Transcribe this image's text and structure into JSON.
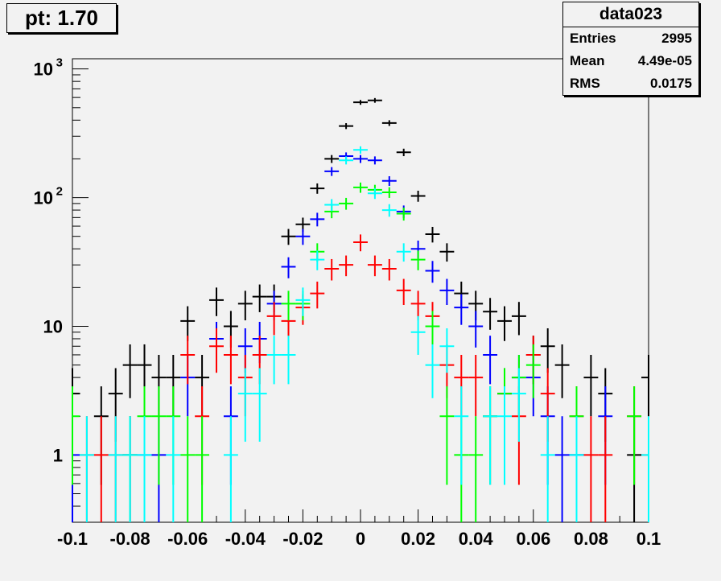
{
  "title_box": {
    "text": "pt: 1.70"
  },
  "stats_box": {
    "name": "data023",
    "rows": [
      {
        "label": "Entries",
        "value": "2995"
      },
      {
        "label": "Mean",
        "value": "4.49e-05"
      },
      {
        "label": "RMS",
        "value": "0.0175"
      }
    ]
  },
  "chart_data": {
    "type": "scatter",
    "title": "",
    "xlabel": "",
    "ylabel": "",
    "xlim": [
      -0.1,
      0.1
    ],
    "ylim": [
      0.3,
      1200
    ],
    "yscale": "log",
    "grid": false,
    "legend": "none",
    "bin_width": 0.005,
    "x_ticks": [
      {
        "value": -0.1,
        "label": "-0.1"
      },
      {
        "value": -0.08,
        "label": "-0.08"
      },
      {
        "value": -0.06,
        "label": "-0.06"
      },
      {
        "value": -0.04,
        "label": "-0.04"
      },
      {
        "value": -0.02,
        "label": "-0.02"
      },
      {
        "value": 0,
        "label": "0"
      },
      {
        "value": 0.02,
        "label": "0.02"
      },
      {
        "value": 0.04,
        "label": "0.04"
      },
      {
        "value": 0.06,
        "label": "0.06"
      },
      {
        "value": 0.08,
        "label": "0.08"
      },
      {
        "value": 0.1,
        "label": "0.1"
      }
    ],
    "y_ticks": [
      {
        "value": 1,
        "label": "1",
        "sup": ""
      },
      {
        "value": 10,
        "label": "10",
        "sup": ""
      },
      {
        "value": 100,
        "label": "10",
        "sup": "2"
      },
      {
        "value": 1000,
        "label": "10",
        "sup": "3"
      }
    ],
    "series": [
      {
        "color": "#000000",
        "points": [
          [
            -0.1,
            3
          ],
          [
            -0.09,
            2
          ],
          [
            -0.085,
            3
          ],
          [
            -0.08,
            5
          ],
          [
            -0.075,
            5
          ],
          [
            -0.07,
            4
          ],
          [
            -0.065,
            4
          ],
          [
            -0.06,
            11
          ],
          [
            -0.055,
            4
          ],
          [
            -0.05,
            16
          ],
          [
            -0.045,
            10
          ],
          [
            -0.04,
            15
          ],
          [
            -0.035,
            17
          ],
          [
            -0.03,
            17
          ],
          [
            -0.025,
            50
          ],
          [
            -0.02,
            62
          ],
          [
            -0.015,
            118
          ],
          [
            -0.01,
            200
          ],
          [
            -0.005,
            360
          ],
          [
            0,
            550
          ],
          [
            0.005,
            570
          ],
          [
            0.01,
            380
          ],
          [
            0.015,
            225
          ],
          [
            0.02,
            103
          ],
          [
            0.025,
            52
          ],
          [
            0.03,
            38
          ],
          [
            0.035,
            18
          ],
          [
            0.04,
            15
          ],
          [
            0.045,
            13
          ],
          [
            0.05,
            11
          ],
          [
            0.055,
            12
          ],
          [
            0.06,
            6
          ],
          [
            0.065,
            7
          ],
          [
            0.07,
            5
          ],
          [
            0.075,
            1
          ],
          [
            0.08,
            4
          ],
          [
            0.085,
            3
          ],
          [
            0.095,
            1
          ],
          [
            0.1,
            4
          ]
        ]
      },
      {
        "color": "#0000ff",
        "points": [
          [
            -0.1,
            1
          ],
          [
            -0.08,
            1
          ],
          [
            -0.075,
            1
          ],
          [
            -0.07,
            1
          ],
          [
            -0.06,
            4
          ],
          [
            -0.05,
            8
          ],
          [
            -0.045,
            2
          ],
          [
            -0.04,
            7
          ],
          [
            -0.035,
            8
          ],
          [
            -0.03,
            15
          ],
          [
            -0.025,
            29
          ],
          [
            -0.02,
            50
          ],
          [
            -0.015,
            68
          ],
          [
            -0.01,
            160
          ],
          [
            -0.005,
            210
          ],
          [
            0,
            200
          ],
          [
            0.005,
            195
          ],
          [
            0.01,
            135
          ],
          [
            0.015,
            78
          ],
          [
            0.02,
            40
          ],
          [
            0.025,
            27
          ],
          [
            0.03,
            19
          ],
          [
            0.035,
            14
          ],
          [
            0.04,
            10
          ],
          [
            0.045,
            6
          ],
          [
            0.05,
            3
          ],
          [
            0.055,
            4
          ],
          [
            0.06,
            4
          ],
          [
            0.065,
            2
          ],
          [
            0.07,
            1
          ],
          [
            0.075,
            1
          ],
          [
            0.085,
            2
          ]
        ]
      },
      {
        "color": "#ff0000",
        "points": [
          [
            -0.095,
            1
          ],
          [
            -0.09,
            1
          ],
          [
            -0.085,
            1
          ],
          [
            -0.08,
            1
          ],
          [
            -0.06,
            6
          ],
          [
            -0.055,
            2
          ],
          [
            -0.05,
            7
          ],
          [
            -0.045,
            6
          ],
          [
            -0.04,
            4
          ],
          [
            -0.035,
            6
          ],
          [
            -0.03,
            12
          ],
          [
            -0.025,
            11
          ],
          [
            -0.02,
            14
          ],
          [
            -0.015,
            18
          ],
          [
            -0.01,
            28
          ],
          [
            -0.005,
            30
          ],
          [
            0,
            45
          ],
          [
            0.005,
            30
          ],
          [
            0.01,
            28
          ],
          [
            0.015,
            19
          ],
          [
            0.02,
            15
          ],
          [
            0.025,
            12
          ],
          [
            0.03,
            5
          ],
          [
            0.035,
            4
          ],
          [
            0.04,
            4
          ],
          [
            0.045,
            2
          ],
          [
            0.05,
            3
          ],
          [
            0.055,
            2
          ],
          [
            0.06,
            6
          ],
          [
            0.065,
            3
          ],
          [
            0.075,
            2
          ],
          [
            0.08,
            1
          ],
          [
            0.085,
            1
          ],
          [
            0.095,
            2
          ],
          [
            0.1,
            1
          ]
        ]
      },
      {
        "color": "#00ff00",
        "points": [
          [
            -0.1,
            2
          ],
          [
            -0.08,
            1
          ],
          [
            -0.075,
            2
          ],
          [
            -0.07,
            2
          ],
          [
            -0.065,
            2
          ],
          [
            -0.06,
            1
          ],
          [
            -0.055,
            1
          ],
          [
            -0.025,
            15
          ],
          [
            -0.02,
            15
          ],
          [
            -0.015,
            38
          ],
          [
            -0.01,
            78
          ],
          [
            -0.005,
            90
          ],
          [
            0,
            120
          ],
          [
            0.005,
            115
          ],
          [
            0.01,
            110
          ],
          [
            0.015,
            75
          ],
          [
            0.02,
            33
          ],
          [
            0.025,
            10
          ],
          [
            0.03,
            2
          ],
          [
            0.035,
            1
          ],
          [
            0.04,
            1
          ],
          [
            0.045,
            2
          ],
          [
            0.05,
            3
          ],
          [
            0.055,
            4
          ],
          [
            0.06,
            5
          ],
          [
            0.075,
            2
          ],
          [
            0.095,
            2
          ]
        ]
      },
      {
        "color": "#00ffff",
        "points": [
          [
            -0.095,
            1
          ],
          [
            -0.085,
            1
          ],
          [
            -0.08,
            1
          ],
          [
            -0.075,
            1
          ],
          [
            -0.065,
            1
          ],
          [
            -0.045,
            1
          ],
          [
            -0.04,
            3
          ],
          [
            -0.035,
            3
          ],
          [
            -0.03,
            6
          ],
          [
            -0.025,
            6
          ],
          [
            -0.02,
            16
          ],
          [
            -0.015,
            33
          ],
          [
            -0.01,
            88
          ],
          [
            -0.005,
            195
          ],
          [
            0,
            235
          ],
          [
            0.005,
            108
          ],
          [
            0.01,
            80
          ],
          [
            0.015,
            38
          ],
          [
            0.02,
            9
          ],
          [
            0.025,
            5
          ],
          [
            0.03,
            7
          ],
          [
            0.035,
            2
          ],
          [
            0.045,
            2
          ],
          [
            0.05,
            2
          ],
          [
            0.055,
            3
          ],
          [
            0.065,
            1
          ],
          [
            0.075,
            1
          ],
          [
            0.1,
            1
          ]
        ]
      }
    ]
  }
}
